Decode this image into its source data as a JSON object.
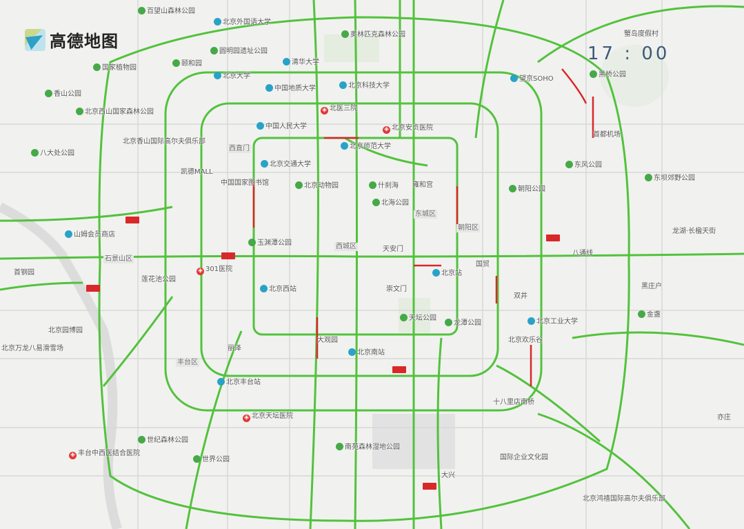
{
  "brand": {
    "logo_text": "高德地图"
  },
  "clock": {
    "time": "17 : 00"
  },
  "colors": {
    "smooth": "#4cc23a",
    "congested": "#d8282a",
    "background": "#f1f1ef"
  },
  "labels": [
    "百望山森林公园",
    "北京大学",
    "颐和园",
    "圆明园遗址公园",
    "清华大学",
    "奥林匹克森林公园",
    "国家植物园",
    "香山公园",
    "北京西山国家森林公园",
    "北京香山国际高尔夫俱乐部",
    "八大处公园",
    "北京外国语大学",
    "中国地质大学",
    "北京科技大学",
    "北医三院",
    "中国人民大学",
    "北京安贞医院",
    "北京师范大学",
    "西直门",
    "北京交通大学",
    "凯德MALL",
    "中国国家图书馆",
    "北京动物园",
    "什刹海",
    "雍和宫",
    "北海公园",
    "东城区",
    "朝阳区",
    "望京SOHO",
    "首都机场",
    "黑桥公园",
    "天安门",
    "北京站",
    "西城区",
    "玉渊潭公园",
    "301医院",
    "石景山区",
    "山姆会员商店",
    "北京西站",
    "莲花池公园",
    "丽泽",
    "北京南站",
    "天坛公园",
    "龙潭公园",
    "北京工业大学",
    "北京欢乐谷",
    "大观园",
    "北京丰台站",
    "北京天坛医院",
    "南苑森林湿地公园",
    "十八里店南桥",
    "国际企业文化园",
    "北京鸿禧国际高尔夫俱乐部",
    "东风公园",
    "朝阳公园",
    "东坝郊野公园",
    "金盏",
    "龙湖·长楹天街",
    "世界公园",
    "北京园博园",
    "世纪森林公园",
    "丰台中西医结合医院",
    "首钢园",
    "北京万龙八易滑雪场",
    "亦庄",
    "黑庄户",
    "蟹岛度假村",
    "国贸",
    "崇文门",
    "丰台区",
    "大兴",
    "双井",
    "八通线"
  ],
  "jams": [
    "congestion-1",
    "congestion-2",
    "congestion-3",
    "congestion-4",
    "congestion-5",
    "congestion-6"
  ]
}
